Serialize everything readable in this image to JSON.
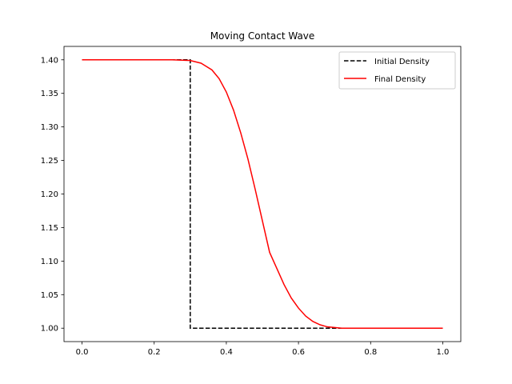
{
  "chart_data": {
    "type": "line",
    "title": "Moving Contact Wave",
    "xlabel": "",
    "ylabel": "",
    "xlim": [
      -0.05,
      1.05
    ],
    "ylim": [
      0.98,
      1.42
    ],
    "xticks": [
      0.0,
      0.2,
      0.4,
      0.6,
      0.8,
      1.0
    ],
    "xtick_labels": [
      "0.0",
      "0.2",
      "0.4",
      "0.6",
      "0.8",
      "1.0"
    ],
    "yticks": [
      1.0,
      1.05,
      1.1,
      1.15,
      1.2,
      1.25,
      1.3,
      1.35,
      1.4
    ],
    "ytick_labels": [
      "1.00",
      "1.05",
      "1.10",
      "1.15",
      "1.20",
      "1.25",
      "1.30",
      "1.35",
      "1.40"
    ],
    "grid": false,
    "legend_position": "top-right",
    "series": [
      {
        "name": "Initial Density",
        "color": "#000000",
        "dash": "dashed",
        "x": [
          0.0,
          0.3,
          0.3,
          1.0
        ],
        "y": [
          1.4,
          1.4,
          1.0,
          1.0
        ]
      },
      {
        "name": "Final Density",
        "color": "#ff0000",
        "dash": "solid",
        "x": [
          0.0,
          0.25,
          0.3,
          0.33,
          0.36,
          0.38,
          0.4,
          0.42,
          0.44,
          0.46,
          0.48,
          0.5,
          0.52,
          0.54,
          0.56,
          0.58,
          0.6,
          0.62,
          0.64,
          0.66,
          0.68,
          0.7,
          0.72,
          0.75,
          0.8,
          1.0
        ],
        "y": [
          1.4,
          1.4,
          1.399,
          1.395,
          1.385,
          1.372,
          1.352,
          1.325,
          1.291,
          1.252,
          1.207,
          1.16,
          1.113,
          1.089,
          1.065,
          1.045,
          1.03,
          1.018,
          1.01,
          1.005,
          1.002,
          1.001,
          1.0,
          1.0,
          1.0,
          1.0
        ]
      }
    ]
  }
}
